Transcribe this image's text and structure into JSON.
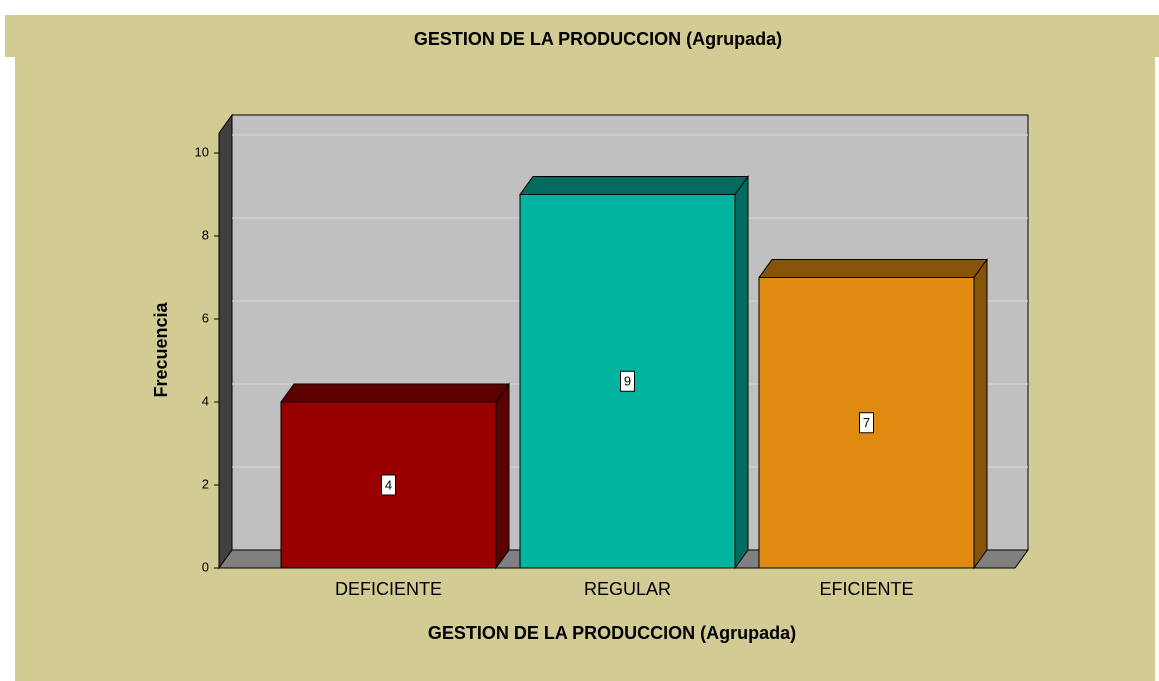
{
  "chart_data": {
    "type": "bar",
    "title": "GESTION DE LA PRODUCCION (Agrupada)",
    "x_label": "GESTION DE LA PRODUCCION (Agrupada)",
    "y_label": "Frecuencia",
    "categories": [
      "DEFICIENTE",
      "REGULAR",
      "EFICIENTE"
    ],
    "values": [
      4,
      9,
      7
    ],
    "colors": [
      "#990000",
      "#00b4a0",
      "#e08a12"
    ],
    "ylim": [
      0,
      10
    ],
    "yticks": [
      0,
      2,
      4,
      6,
      8,
      10
    ],
    "grid": true
  }
}
